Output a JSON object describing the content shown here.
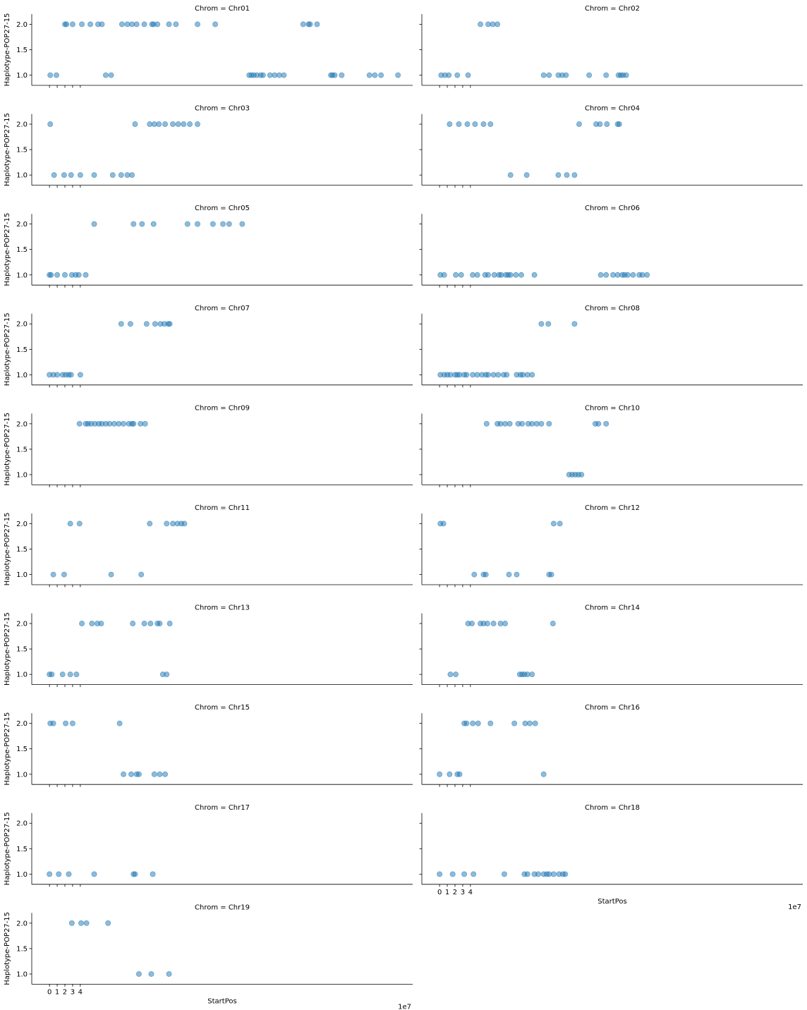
{
  "figure": {
    "accent_color": "#1f77b4"
  },
  "chart_data": {
    "type": "scatter",
    "layout": "facet-grid",
    "col_wrap": 2,
    "xlabel": "StartPos",
    "x_offset_text": "1e7",
    "ylabel": "Haplotype-POP27-15",
    "xlim": [
      -2.3,
      47.2
    ],
    "ylim": [
      0.8,
      2.2
    ],
    "x_ticks": [
      0,
      1,
      2,
      3,
      4
    ],
    "x_tick_labels": [
      "0",
      "1",
      "2",
      "3",
      "4"
    ],
    "y_ticks": [
      1.0,
      1.5,
      2.0
    ],
    "y_tick_labels": [
      "1.0",
      "1.5",
      "2.0"
    ],
    "grid": false,
    "point_color": "#1f77b4",
    "panels": [
      {
        "title": "Chrom = Chr01",
        "x": [
          2.0,
          2.2,
          3.0,
          4.2,
          5.3,
          6.3,
          6.8,
          9.4,
          10.1,
          10.7,
          11.3,
          12.3,
          13.3,
          13.5,
          14.0,
          15.5,
          16.4,
          19.2,
          21.5,
          32.9,
          33.6,
          33.8,
          34.7,
          0.1,
          0.9,
          7.3,
          8.0,
          25.9,
          26.2,
          26.5,
          26.9,
          27.4,
          27.7,
          28.6,
          29.2,
          29.8,
          30.4,
          36.5,
          36.7,
          37.0,
          37.9,
          41.5,
          42.2,
          43.0,
          45.2
        ],
        "y": [
          2,
          2,
          2,
          2,
          2,
          2,
          2,
          2,
          2,
          2,
          2,
          2,
          2,
          2,
          2,
          2,
          2,
          2,
          2,
          2,
          2,
          2,
          2,
          1,
          1,
          1,
          1,
          1,
          1,
          1,
          1,
          1,
          1,
          1,
          1,
          1,
          1,
          1,
          1,
          1,
          1,
          1,
          1,
          1,
          1
        ]
      },
      {
        "title": "Chrom = Chr02",
        "x": [
          5.3,
          6.3,
          6.9,
          7.5,
          0.2,
          0.7,
          1.2,
          2.3,
          3.7,
          13.5,
          14.2,
          15.4,
          15.9,
          16.4,
          19.4,
          21.6,
          23.2,
          23.5,
          23.8,
          24.2
        ],
        "y": [
          2,
          2,
          2,
          2,
          1,
          1,
          1,
          1,
          1,
          1,
          1,
          1,
          1,
          1,
          1,
          1,
          1,
          1,
          1,
          1
        ]
      },
      {
        "title": "Chrom = Chr03",
        "x": [
          0.1,
          11.1,
          13.0,
          13.6,
          14.2,
          15.0,
          16.0,
          16.7,
          17.4,
          18.2,
          19.2,
          0.6,
          1.9,
          2.8,
          4.0,
          5.8,
          8.2,
          9.3,
          10.1,
          10.7
        ],
        "y": [
          2,
          2,
          2,
          2,
          2,
          2,
          2,
          2,
          2,
          2,
          2,
          1,
          1,
          1,
          1,
          1,
          1,
          1,
          1,
          1
        ]
      },
      {
        "title": "Chrom = Chr04",
        "x": [
          1.3,
          2.5,
          3.6,
          4.6,
          5.7,
          6.6,
          18.1,
          20.3,
          20.8,
          21.7,
          23.1,
          23.3,
          9.2,
          11.3,
          15.4,
          16.5,
          17.5
        ],
        "y": [
          2,
          2,
          2,
          2,
          2,
          2,
          2,
          2,
          2,
          2,
          2,
          2,
          1,
          1,
          1,
          1,
          1
        ]
      },
      {
        "title": "Chrom = Chr05",
        "x": [
          5.8,
          10.9,
          12.0,
          13.5,
          17.9,
          19.2,
          21.2,
          22.5,
          23.3,
          25.0,
          0.0,
          0.2,
          1.0,
          2.0,
          2.9,
          3.4,
          3.8,
          4.7
        ],
        "y": [
          2,
          2,
          2,
          2,
          2,
          2,
          2,
          2,
          2,
          2,
          1,
          1,
          1,
          1,
          1,
          1,
          1,
          1
        ]
      },
      {
        "title": "Chrom = Chr06",
        "x": [
          0.1,
          0.6,
          2.1,
          2.8,
          4.3,
          4.9,
          5.9,
          6.3,
          7.1,
          7.7,
          8.0,
          8.6,
          8.9,
          9.2,
          9.9,
          10.6,
          12.3,
          20.9,
          21.6,
          22.5,
          23.1,
          23.7,
          24.0,
          24.4,
          25.1,
          25.9,
          26.3,
          26.9
        ],
        "y": [
          1,
          1,
          1,
          1,
          1,
          1,
          1,
          1,
          1,
          1,
          1,
          1,
          1,
          1,
          1,
          1,
          1,
          1,
          1,
          1,
          1,
          1,
          1,
          1,
          1,
          1,
          1,
          1
        ]
      },
      {
        "title": "Chrom = Chr07",
        "x": [
          9.3,
          10.5,
          12.6,
          13.7,
          14.4,
          14.9,
          15.4,
          15.6,
          0.0,
          0.5,
          1.0,
          1.7,
          2.1,
          2.5,
          2.8,
          4.0
        ],
        "y": [
          2,
          2,
          2,
          2,
          2,
          2,
          2,
          2,
          1,
          1,
          1,
          1,
          1,
          1,
          1,
          1
        ]
      },
      {
        "title": "Chrom = Chr08",
        "x": [
          13.2,
          14.1,
          17.5,
          0.1,
          0.6,
          1.0,
          1.4,
          2.0,
          2.3,
          2.6,
          3.2,
          3.5,
          4.3,
          4.9,
          5.5,
          6.0,
          6.3,
          7.0,
          7.6,
          8.3,
          8.7,
          10.0,
          10.5,
          10.8,
          11.4,
          12.0
        ],
        "y": [
          2,
          2,
          2,
          1,
          1,
          1,
          1,
          1,
          1,
          1,
          1,
          1,
          1,
          1,
          1,
          1,
          1,
          1,
          1,
          1,
          1,
          1,
          1,
          1,
          1,
          1
        ]
      },
      {
        "title": "Chrom = Chr09",
        "x": [
          3.9,
          4.7,
          5.0,
          5.4,
          5.9,
          6.4,
          6.8,
          7.3,
          7.8,
          8.4,
          9.0,
          9.6,
          10.3,
          10.7,
          10.9,
          11.8,
          12.4
        ],
        "y": [
          2,
          2,
          2,
          2,
          2,
          2,
          2,
          2,
          2,
          2,
          2,
          2,
          2,
          2,
          2,
          2,
          2
        ]
      },
      {
        "title": "Chrom = Chr10",
        "x": [
          6.1,
          7.5,
          7.9,
          8.5,
          9.1,
          10.2,
          10.7,
          11.5,
          12.0,
          12.6,
          13.2,
          14.2,
          20.2,
          20.6,
          21.6,
          16.8,
          17.2,
          17.6,
          18.0,
          18.4
        ],
        "y": [
          2,
          2,
          2,
          2,
          2,
          2,
          2,
          2,
          2,
          2,
          2,
          2,
          2,
          2,
          2,
          1,
          1,
          1,
          1,
          1
        ]
      },
      {
        "title": "Chrom = Chr11",
        "x": [
          2.7,
          3.9,
          13.0,
          15.2,
          16.0,
          16.6,
          17.1,
          17.5,
          0.5,
          1.9,
          8.0,
          11.9
        ],
        "y": [
          2,
          2,
          2,
          2,
          2,
          2,
          2,
          2,
          1,
          1,
          1,
          1
        ]
      },
      {
        "title": "Chrom = Chr12",
        "x": [
          0.1,
          0.5,
          14.8,
          15.6,
          4.5,
          5.7,
          6.0,
          9.0,
          10.0,
          14.2,
          14.5
        ],
        "y": [
          2,
          2,
          2,
          2,
          1,
          1,
          1,
          1,
          1,
          1,
          1
        ]
      },
      {
        "title": "Chrom = Chr13",
        "x": [
          4.2,
          5.5,
          6.2,
          6.7,
          10.8,
          12.3,
          13.1,
          14.0,
          14.3,
          15.6,
          0.0,
          0.3,
          1.7,
          2.7,
          3.5,
          14.7,
          15.2
        ],
        "y": [
          2,
          2,
          2,
          2,
          2,
          2,
          2,
          2,
          2,
          2,
          1,
          1,
          1,
          1,
          1,
          1,
          1
        ]
      },
      {
        "title": "Chrom = Chr14",
        "x": [
          3.7,
          4.2,
          5.3,
          5.7,
          6.2,
          7.0,
          7.9,
          8.5,
          14.7,
          1.4,
          2.1,
          10.4,
          10.7,
          11.0,
          11.4,
          12.0
        ],
        "y": [
          2,
          2,
          2,
          2,
          2,
          2,
          2,
          2,
          2,
          1,
          1,
          1,
          1,
          1,
          1,
          1
        ]
      },
      {
        "title": "Chrom = Chr15",
        "x": [
          0.1,
          0.5,
          2.1,
          3.0,
          9.1,
          9.6,
          10.6,
          11.3,
          11.6,
          13.6,
          14.3,
          15.0
        ],
        "y": [
          2,
          2,
          2,
          2,
          2,
          1,
          1,
          1,
          1,
          1,
          1,
          1
        ]
      },
      {
        "title": "Chrom = Chr16",
        "x": [
          3.2,
          3.5,
          4.3,
          5.0,
          6.6,
          9.7,
          11.1,
          11.7,
          12.4,
          0.0,
          1.3,
          2.3,
          2.6,
          13.5
        ],
        "y": [
          2,
          2,
          2,
          2,
          2,
          2,
          2,
          2,
          2,
          1,
          1,
          1,
          1,
          1
        ]
      },
      {
        "title": "Chrom = Chr17",
        "x": [
          0.0,
          1.2,
          2.5,
          5.8,
          10.9,
          11.1,
          13.4
        ],
        "y": [
          1,
          1,
          1,
          1,
          1,
          1,
          1
        ]
      },
      {
        "title": "Chrom = Chr18",
        "x": [
          0.0,
          1.7,
          3.2,
          4.4,
          8.4,
          11.0,
          11.4,
          12.3,
          12.8,
          13.5,
          13.9,
          14.2,
          14.8,
          15.5,
          16.0,
          16.3
        ],
        "y": [
          1,
          1,
          1,
          1,
          1,
          1,
          1,
          1,
          1,
          1,
          1,
          1,
          1,
          1,
          1,
          1
        ]
      },
      {
        "title": "Chrom = Chr19",
        "x": [
          2.9,
          4.1,
          4.8,
          7.6,
          11.6,
          13.2,
          15.5
        ],
        "y": [
          2,
          2,
          2,
          2,
          1,
          1,
          1
        ]
      }
    ]
  }
}
